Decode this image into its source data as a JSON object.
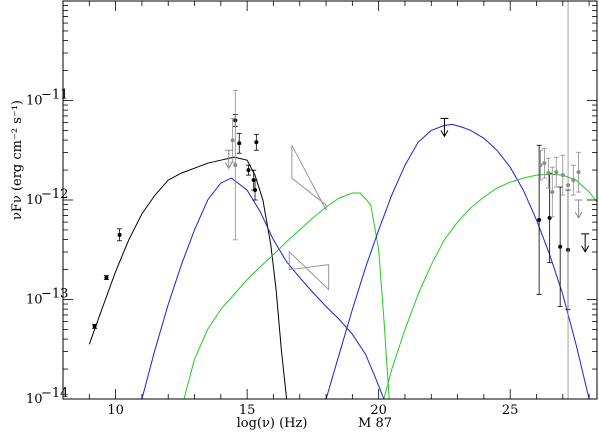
{
  "chart_data": {
    "type": "scatter",
    "title": "",
    "annotation": "M 87",
    "xlabel": "log(ν) (Hz)",
    "ylabel": "νFν (erg cm⁻² s⁻¹)",
    "xlim": [
      8,
      28.3
    ],
    "ylim_log10": [
      -14,
      -10
    ],
    "y_log_scale": true,
    "grid": false,
    "x_ticks": [
      "10",
      "15",
      "20",
      "25"
    ],
    "y_ticks": [
      {
        "base": "10",
        "exp": "−11"
      },
      {
        "base": "10",
        "exp": "−12"
      },
      {
        "base": "10",
        "exp": "−13"
      },
      {
        "base": "10",
        "exp": "−14"
      }
    ],
    "colors": {
      "black": "#000000",
      "blue": "#1f1fd6",
      "green": "#22cc22",
      "grey": "#8c8c8c"
    },
    "series": [
      {
        "color": "black",
        "kind": "model",
        "x": [
          9.0,
          9.5,
          10.0,
          10.5,
          11.0,
          11.5,
          12.0,
          12.5,
          13.0,
          13.5,
          14.0,
          14.5,
          15.0,
          15.3,
          15.6,
          15.9,
          16.1,
          16.3,
          16.5
        ],
        "log_y": [
          -13.45,
          -13.08,
          -12.72,
          -12.4,
          -12.14,
          -11.95,
          -11.8,
          -11.73,
          -11.68,
          -11.63,
          -11.6,
          -11.57,
          -11.6,
          -11.75,
          -12.0,
          -12.45,
          -12.9,
          -13.5,
          -14.0
        ]
      },
      {
        "color": "blue",
        "kind": "model",
        "x": [
          11.0,
          11.5,
          12.0,
          12.5,
          13.0,
          13.5,
          14.0,
          14.4,
          15.0,
          15.5,
          16.0,
          16.5,
          17.0,
          17.5,
          18.0,
          18.5,
          19.0,
          19.5,
          19.9,
          20.2
        ],
        "log_y": [
          -14.0,
          -13.5,
          -13.05,
          -12.65,
          -12.3,
          -12.0,
          -11.83,
          -11.78,
          -11.9,
          -12.12,
          -12.4,
          -12.62,
          -12.78,
          -12.93,
          -13.07,
          -13.2,
          -13.35,
          -13.55,
          -13.8,
          -14.0
        ]
      },
      {
        "color": "green",
        "kind": "model",
        "x": [
          12.6,
          13.0,
          13.5,
          14.0,
          14.5,
          15.0,
          15.5,
          16.0,
          16.5,
          17.0,
          17.5,
          18.0,
          18.5,
          19.0,
          19.3,
          19.7,
          20.0,
          20.2,
          20.4
        ],
        "log_y": [
          -14.0,
          -13.6,
          -13.3,
          -13.1,
          -12.95,
          -12.8,
          -12.67,
          -12.55,
          -12.42,
          -12.3,
          -12.18,
          -12.07,
          -11.98,
          -11.93,
          -11.93,
          -12.05,
          -12.5,
          -13.2,
          -14.0
        ]
      },
      {
        "color": "blue",
        "kind": "model",
        "x": [
          18.0,
          18.5,
          19.0,
          19.5,
          20.0,
          20.5,
          21.0,
          21.5,
          22.0,
          22.5,
          22.8,
          23.2,
          23.5,
          24.0,
          24.5,
          25.0,
          25.5,
          26.0,
          26.5,
          27.0,
          27.5,
          28.0
        ],
        "log_y": [
          -14.0,
          -13.55,
          -13.1,
          -12.68,
          -12.3,
          -11.95,
          -11.65,
          -11.42,
          -11.3,
          -11.25,
          -11.24,
          -11.27,
          -11.3,
          -11.38,
          -11.5,
          -11.67,
          -11.9,
          -12.2,
          -12.55,
          -12.95,
          -13.45,
          -14.0
        ]
      },
      {
        "color": "green",
        "kind": "model",
        "x": [
          20.2,
          20.5,
          21.0,
          21.5,
          22.0,
          22.5,
          23.0,
          23.5,
          24.0,
          24.5,
          25.0,
          25.5,
          26.0,
          26.5,
          27.0,
          27.5,
          28.0,
          28.3
        ],
        "log_y": [
          -14.0,
          -13.7,
          -13.3,
          -12.95,
          -12.65,
          -12.4,
          -12.22,
          -12.08,
          -11.97,
          -11.88,
          -11.82,
          -11.78,
          -11.75,
          -11.74,
          -11.75,
          -11.8,
          -11.92,
          -12.02
        ]
      }
    ],
    "points": [
      {
        "x": 9.2,
        "log_y": -13.27,
        "err": 0.02,
        "color": "black"
      },
      {
        "x": 9.65,
        "log_y": -12.78,
        "err": 0.02,
        "color": "black"
      },
      {
        "x": 10.15,
        "log_y": -12.35,
        "err": 0.06,
        "color": "black"
      },
      {
        "x": 14.55,
        "log_y": -11.2,
        "err": 0.06,
        "color": "black"
      },
      {
        "x": 14.7,
        "log_y": -11.43,
        "err": 0.1,
        "color": "black"
      },
      {
        "x": 15.05,
        "log_y": -11.7,
        "err": 0.05,
        "color": "black"
      },
      {
        "x": 15.25,
        "log_y": -11.8,
        "err": 0.1,
        "color": "black"
      },
      {
        "x": 15.3,
        "log_y": -11.9,
        "err": 0.1,
        "color": "black"
      },
      {
        "x": 15.35,
        "log_y": -11.42,
        "err": 0.08,
        "color": "black"
      },
      {
        "x": 26.1,
        "log_y": -12.2,
        "err": 0.75,
        "color": "black"
      },
      {
        "x": 26.5,
        "log_y": -12.18,
        "err": 0.45,
        "color": "black"
      },
      {
        "x": 26.9,
        "log_y": -12.47,
        "err": 0.6,
        "color": "black"
      },
      {
        "x": 27.2,
        "log_y": -12.5,
        "err": 0.6,
        "color": "black"
      },
      {
        "x": 14.45,
        "log_y": -11.4,
        "err": 0.22,
        "color": "grey"
      },
      {
        "x": 14.55,
        "log_y": -11.65,
        "err": 0.75,
        "color": "grey"
      },
      {
        "x": 26.15,
        "log_y": -11.65,
        "err": 0.15,
        "color": "grey"
      },
      {
        "x": 26.3,
        "log_y": -11.63,
        "err": 0.15,
        "color": "grey"
      },
      {
        "x": 26.45,
        "log_y": -11.73,
        "err": 0.15,
        "color": "grey"
      },
      {
        "x": 26.6,
        "log_y": -11.92,
        "err": 0.25,
        "color": "grey"
      },
      {
        "x": 26.75,
        "log_y": -11.72,
        "err": 0.15,
        "color": "grey"
      },
      {
        "x": 27.0,
        "log_y": -11.75,
        "err": 0.2,
        "color": "grey"
      },
      {
        "x": 27.2,
        "log_y": -11.85,
        "err": 2.2,
        "color": "grey"
      },
      {
        "x": 27.4,
        "log_y": -11.8,
        "err": 0.15,
        "color": "grey"
      },
      {
        "x": 27.6,
        "log_y": -11.72,
        "err": 0.2,
        "color": "grey"
      }
    ],
    "upper_limits": [
      {
        "x": 14.3,
        "log_y": -11.5,
        "color": "grey"
      },
      {
        "x": 22.5,
        "log_y": -11.18,
        "color": "black"
      },
      {
        "x": 27.6,
        "log_y": -12.0,
        "color": "grey"
      },
      {
        "x": 27.85,
        "log_y": -12.34,
        "color": "black"
      }
    ],
    "bowties": [
      {
        "x": [
          16.7,
          18.0
        ],
        "log_y": [
          [
            -11.45,
            -11.78
          ],
          [
            -12.05,
            -12.1
          ]
        ],
        "color": "grey"
      },
      {
        "x": [
          16.6,
          18.1
        ],
        "log_y": [
          [
            -12.52,
            -12.7
          ],
          [
            -12.65,
            -12.9
          ]
        ],
        "color": "grey"
      }
    ]
  }
}
